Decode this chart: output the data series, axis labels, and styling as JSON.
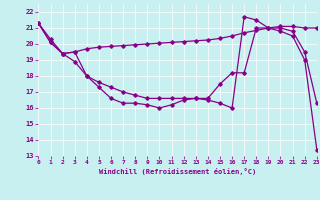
{
  "xlabel": "Windchill (Refroidissement éolien,°C)",
  "bg_color": "#c8f0f0",
  "line_color": "#880088",
  "xlim": [
    0,
    23
  ],
  "ylim": [
    13,
    22.5
  ],
  "yticks": [
    13,
    14,
    15,
    16,
    17,
    18,
    19,
    20,
    21,
    22
  ],
  "xticks": [
    0,
    1,
    2,
    3,
    4,
    5,
    6,
    7,
    8,
    9,
    10,
    11,
    12,
    13,
    14,
    15,
    16,
    17,
    18,
    19,
    20,
    21,
    22,
    23
  ],
  "line1_x": [
    0,
    1,
    2,
    3,
    4,
    5,
    6,
    7,
    8,
    9,
    10,
    11,
    12,
    13,
    14,
    15,
    16,
    17,
    18,
    19,
    20,
    21,
    22,
    23
  ],
  "line1_y": [
    21.3,
    20.3,
    19.4,
    18.9,
    18.0,
    17.3,
    16.6,
    16.3,
    16.3,
    16.2,
    16.0,
    16.2,
    16.5,
    16.6,
    16.6,
    17.5,
    18.2,
    18.2,
    21.0,
    21.0,
    21.0,
    20.8,
    19.5,
    16.3
  ],
  "line2_x": [
    0,
    1,
    2,
    3,
    4,
    5,
    6,
    7,
    8,
    9,
    10,
    11,
    12,
    13,
    14,
    15,
    16,
    17,
    18,
    19,
    20,
    21,
    22,
    23
  ],
  "line2_y": [
    21.3,
    20.1,
    19.4,
    19.5,
    19.7,
    19.8,
    19.85,
    19.9,
    19.95,
    20.0,
    20.05,
    20.1,
    20.15,
    20.2,
    20.25,
    20.35,
    20.5,
    20.7,
    20.85,
    21.0,
    21.1,
    21.1,
    21.0,
    21.0
  ],
  "line3_x": [
    0,
    1,
    2,
    3,
    4,
    5,
    6,
    7,
    8,
    9,
    10,
    11,
    12,
    13,
    14,
    15,
    16,
    17,
    18,
    19,
    20,
    21,
    22,
    23
  ],
  "line3_y": [
    21.3,
    20.1,
    19.4,
    19.5,
    18.0,
    17.6,
    17.3,
    17.0,
    16.8,
    16.6,
    16.6,
    16.6,
    16.6,
    16.6,
    16.5,
    16.3,
    16.0,
    21.7,
    21.5,
    21.0,
    20.8,
    20.5,
    19.0,
    13.4
  ]
}
